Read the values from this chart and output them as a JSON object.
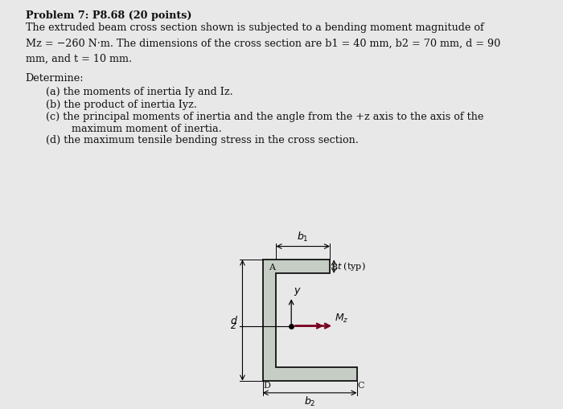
{
  "title": "Problem 7: P8.68 (20 points)",
  "line1": "The extruded beam cross section shown is subjected to a bending moment magnitude of",
  "line2": "Mz = −260 N·m. The dimensions of the cross section are b1 = 40 mm, b2 = 70 mm, d = 90",
  "line3": "mm, and t = 10 mm.",
  "det_header": "Determine:",
  "item_a": "(a) the moments of inertia Iy and Iz.",
  "item_b": "(b) the product of inertia Iyz.",
  "item_c1": "(c) the principal moments of inertia and the angle from the +z axis to the axis of the",
  "item_c2": "        maximum moment of inertia.",
  "item_d": "(d) the maximum tensile bending stress in the cross section.",
  "bg_color": "#e8e8e8",
  "shape_fill": "#c5cdc5",
  "shape_edge": "#111111",
  "arrow_color": "#7a0020",
  "text_color": "#111111",
  "t": 10,
  "b1": 40,
  "b2": 70,
  "d": 90,
  "fig_width": 7.0,
  "fig_height": 5.09,
  "dpi": 100
}
